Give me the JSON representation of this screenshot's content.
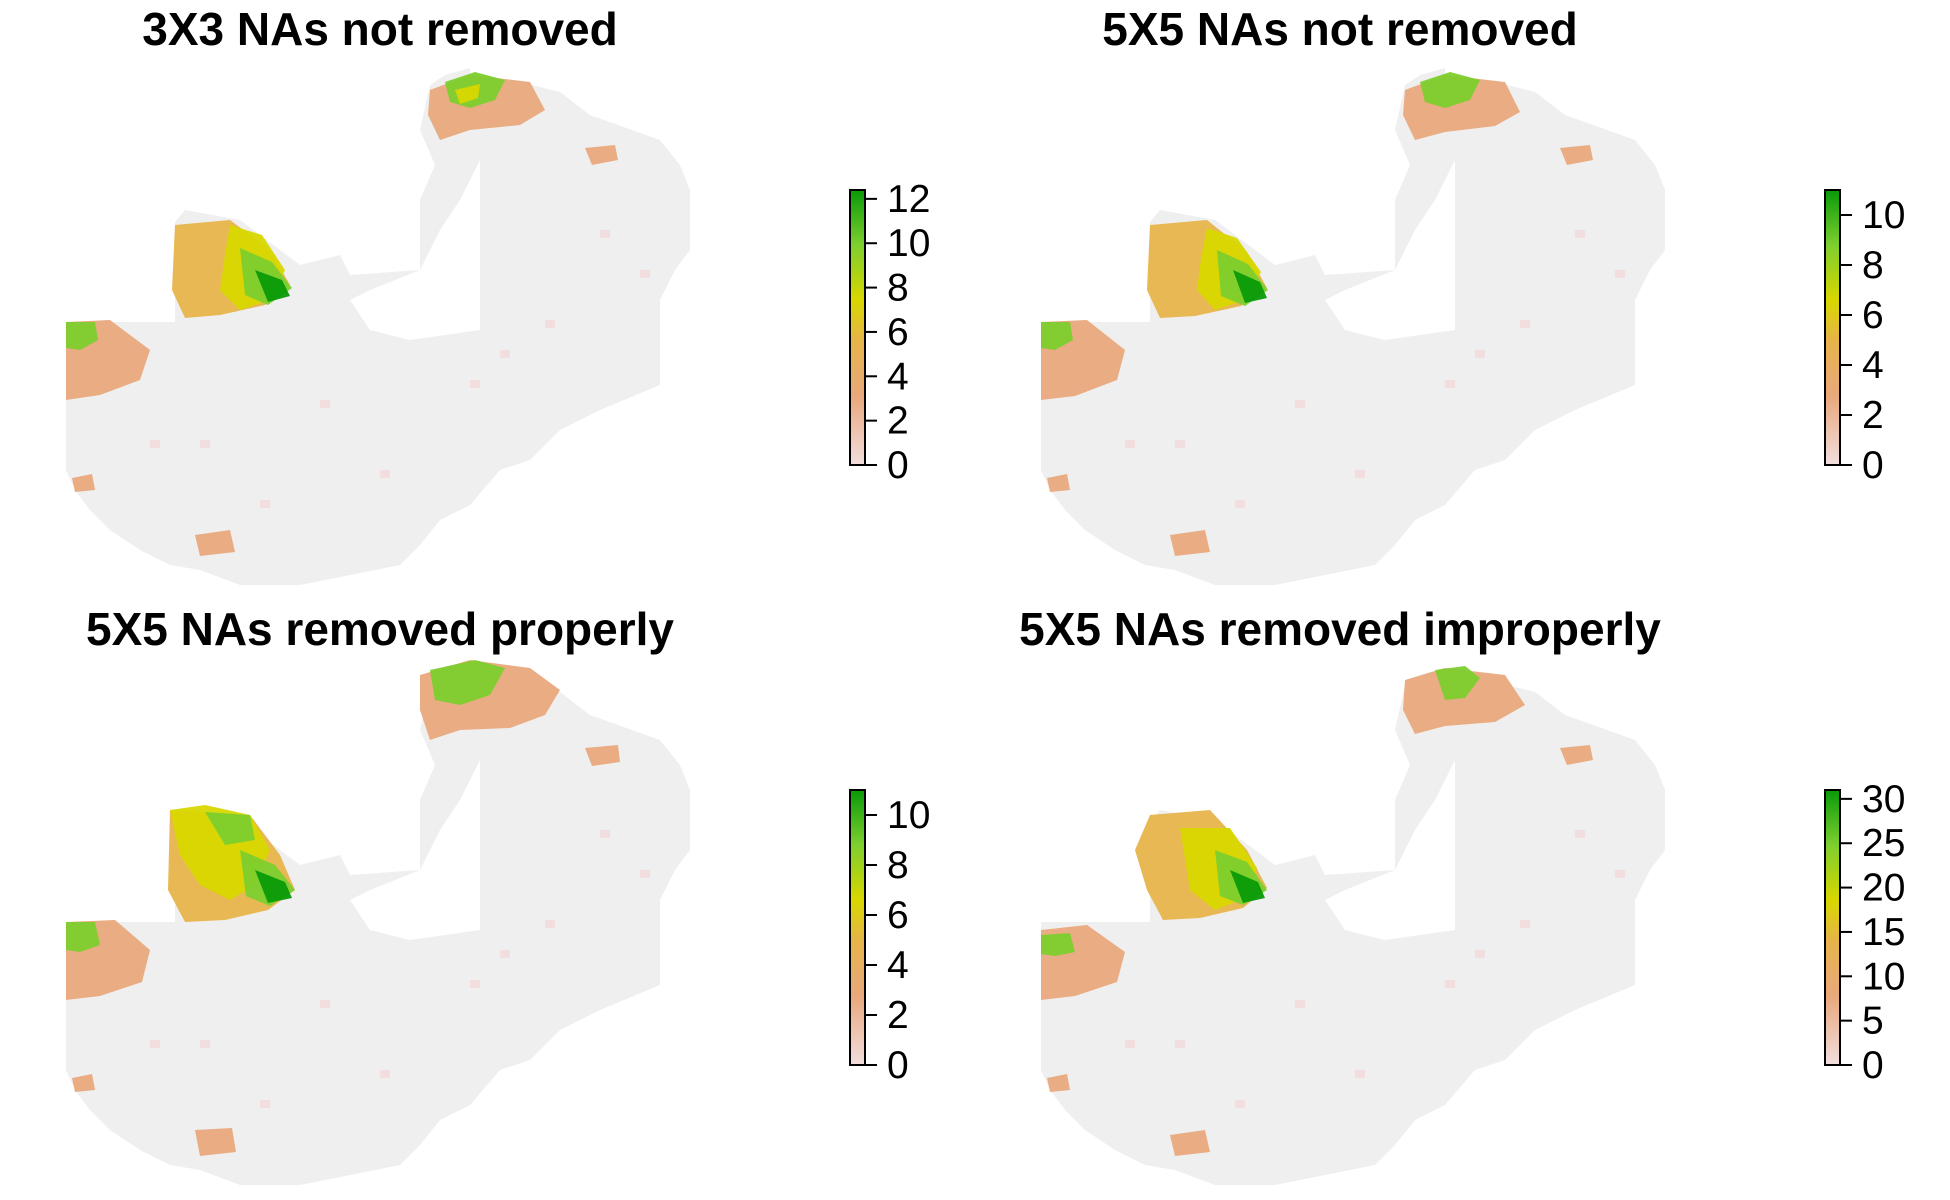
{
  "panels": [
    {
      "title": "3X3 NAs not removed",
      "legend": {
        "ticks": [
          0,
          2,
          4,
          6,
          8,
          10,
          12
        ],
        "max": 12.4
      },
      "variant": "3x3"
    },
    {
      "title": "5X5 NAs not removed",
      "legend": {
        "ticks": [
          0,
          2,
          4,
          6,
          8,
          10
        ],
        "max": 11.0
      },
      "variant": "5x5"
    },
    {
      "title": "5X5 NAs removed properly",
      "legend": {
        "ticks": [
          0,
          2,
          4,
          6,
          8,
          10
        ],
        "max": 11.0
      },
      "variant": "proper"
    },
    {
      "title": "5X5 NAs removed improperly",
      "legend": {
        "ticks": [
          0,
          5,
          10,
          15,
          20,
          25,
          30
        ],
        "max": 31.0
      },
      "variant": "improper"
    }
  ],
  "colors": {
    "background_land": "#efefef",
    "low": "#f2dede",
    "mid_low": "#e8a87c",
    "mid": "#e6b44a",
    "mid_high": "#d8d700",
    "high": "#7dcf2e",
    "top": "#089a08"
  }
}
